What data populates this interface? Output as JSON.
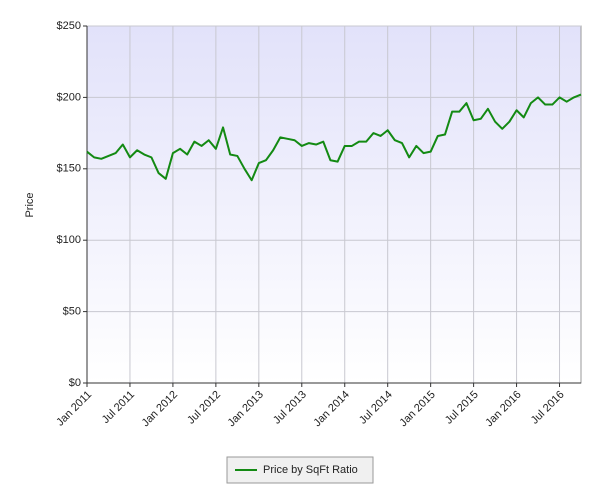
{
  "chart_data": {
    "type": "line",
    "y_label": "Price",
    "x": [
      "2011-01",
      "2011-02",
      "2011-03",
      "2011-04",
      "2011-05",
      "2011-06",
      "2011-07",
      "2011-08",
      "2011-09",
      "2011-10",
      "2011-11",
      "2011-12",
      "2012-01",
      "2012-02",
      "2012-03",
      "2012-04",
      "2012-05",
      "2012-06",
      "2012-07",
      "2012-08",
      "2012-09",
      "2012-10",
      "2012-11",
      "2012-12",
      "2013-01",
      "2013-02",
      "2013-03",
      "2013-04",
      "2013-05",
      "2013-06",
      "2013-07",
      "2013-08",
      "2013-09",
      "2013-10",
      "2013-11",
      "2013-12",
      "2014-01",
      "2014-02",
      "2014-03",
      "2014-04",
      "2014-05",
      "2014-06",
      "2014-07",
      "2014-08",
      "2014-09",
      "2014-10",
      "2014-11",
      "2014-12",
      "2015-01",
      "2015-02",
      "2015-03",
      "2015-04",
      "2015-05",
      "2015-06",
      "2015-07",
      "2015-08",
      "2015-09",
      "2015-10",
      "2015-11",
      "2015-12",
      "2016-01",
      "2016-02",
      "2016-03",
      "2016-04",
      "2016-05",
      "2016-06",
      "2016-07",
      "2016-08",
      "2016-09",
      "2016-10"
    ],
    "series": [
      {
        "name": "Price by SqFt Ratio",
        "color": "#138a13",
        "values": [
          162,
          158,
          157,
          159,
          161,
          167,
          158,
          163,
          160,
          158,
          147,
          143,
          161,
          164,
          160,
          169,
          166,
          170,
          164,
          179,
          160,
          159,
          150,
          142,
          154,
          156,
          163,
          172,
          171,
          170,
          166,
          168,
          167,
          169,
          156,
          155,
          166,
          166,
          169,
          169,
          175,
          173,
          177,
          170,
          168,
          158,
          166,
          161,
          162,
          173,
          174,
          190,
          190,
          196,
          184,
          185,
          192,
          183,
          178,
          183,
          191,
          186,
          196,
          200,
          195,
          195,
          200,
          197,
          200,
          202
        ]
      }
    ],
    "xlim": [
      "2011-01",
      "2016-10"
    ],
    "xticks": [
      {
        "value": "2011-01",
        "label": "Jan 2011"
      },
      {
        "value": "2011-07",
        "label": "Jul 2011"
      },
      {
        "value": "2012-01",
        "label": "Jan 2012"
      },
      {
        "value": "2012-07",
        "label": "Jul 2012"
      },
      {
        "value": "2013-01",
        "label": "Jan 2013"
      },
      {
        "value": "2013-07",
        "label": "Jul 2013"
      },
      {
        "value": "2014-01",
        "label": "Jan 2014"
      },
      {
        "value": "2014-07",
        "label": "Jul 2014"
      },
      {
        "value": "2015-01",
        "label": "Jan 2015"
      },
      {
        "value": "2015-07",
        "label": "Jul 2015"
      },
      {
        "value": "2016-01",
        "label": "Jan 2016"
      },
      {
        "value": "2016-07",
        "label": "Jul 2016"
      }
    ],
    "ylim": [
      0,
      250
    ],
    "yticks": [
      {
        "value": 0,
        "label": "$0"
      },
      {
        "value": 50,
        "label": "$50"
      },
      {
        "value": 100,
        "label": "$100"
      },
      {
        "value": 150,
        "label": "$150"
      },
      {
        "value": 200,
        "label": "$200"
      },
      {
        "value": 250,
        "label": "$250"
      }
    ],
    "grid": true,
    "legend": "bottom"
  }
}
